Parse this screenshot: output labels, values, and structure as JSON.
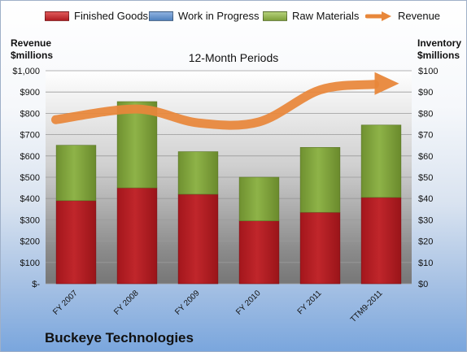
{
  "legend": {
    "finished": "Finished Goods",
    "wip": "Work in Progress",
    "raw": "Raw Materials",
    "revenue": "Revenue"
  },
  "left_axis_title": {
    "line1": "Revenue",
    "line2": "$millions"
  },
  "right_axis_title": {
    "line1": "Inventory",
    "line2": "$millions"
  },
  "subtitle": "12-Month Periods",
  "company": "Buckeye Technologies",
  "colors": {
    "finished": "#c0262b",
    "wip": "#4f81bd",
    "raw": "#8eb348",
    "revenue": "#e8873a"
  },
  "chart_data": {
    "type": "bar",
    "categories": [
      "FY 2007",
      "FY 2008",
      "FY 2009",
      "FY 2010",
      "FY 2011",
      "TTM9-2011"
    ],
    "series": [
      {
        "name": "Finished Goods",
        "axis": "right",
        "values": [
          39,
          45,
          42,
          29.5,
          33.5,
          40.5
        ]
      },
      {
        "name": "Work in Progress",
        "axis": "right",
        "values": [
          0,
          0,
          0,
          0,
          0,
          0
        ]
      },
      {
        "name": "Raw Materials",
        "axis": "right",
        "values": [
          26,
          40.5,
          20,
          20.5,
          30.5,
          34
        ]
      },
      {
        "name": "Revenue",
        "axis": "left",
        "type": "line",
        "values": [
          770,
          820,
          755,
          760,
          910,
          940
        ]
      }
    ],
    "left_axis": {
      "range": [
        0,
        1000
      ],
      "ticks": [
        "$-",
        "$100",
        "$200",
        "$300",
        "$400",
        "$500",
        "$600",
        "$700",
        "$800",
        "$900",
        "$1,000"
      ]
    },
    "right_axis": {
      "range": [
        0,
        100
      ],
      "ticks": [
        "$0",
        "$10",
        "$20",
        "$30",
        "$40",
        "$50",
        "$60",
        "$70",
        "$80",
        "$90",
        "$100"
      ]
    },
    "grid": true,
    "legend": "top"
  }
}
